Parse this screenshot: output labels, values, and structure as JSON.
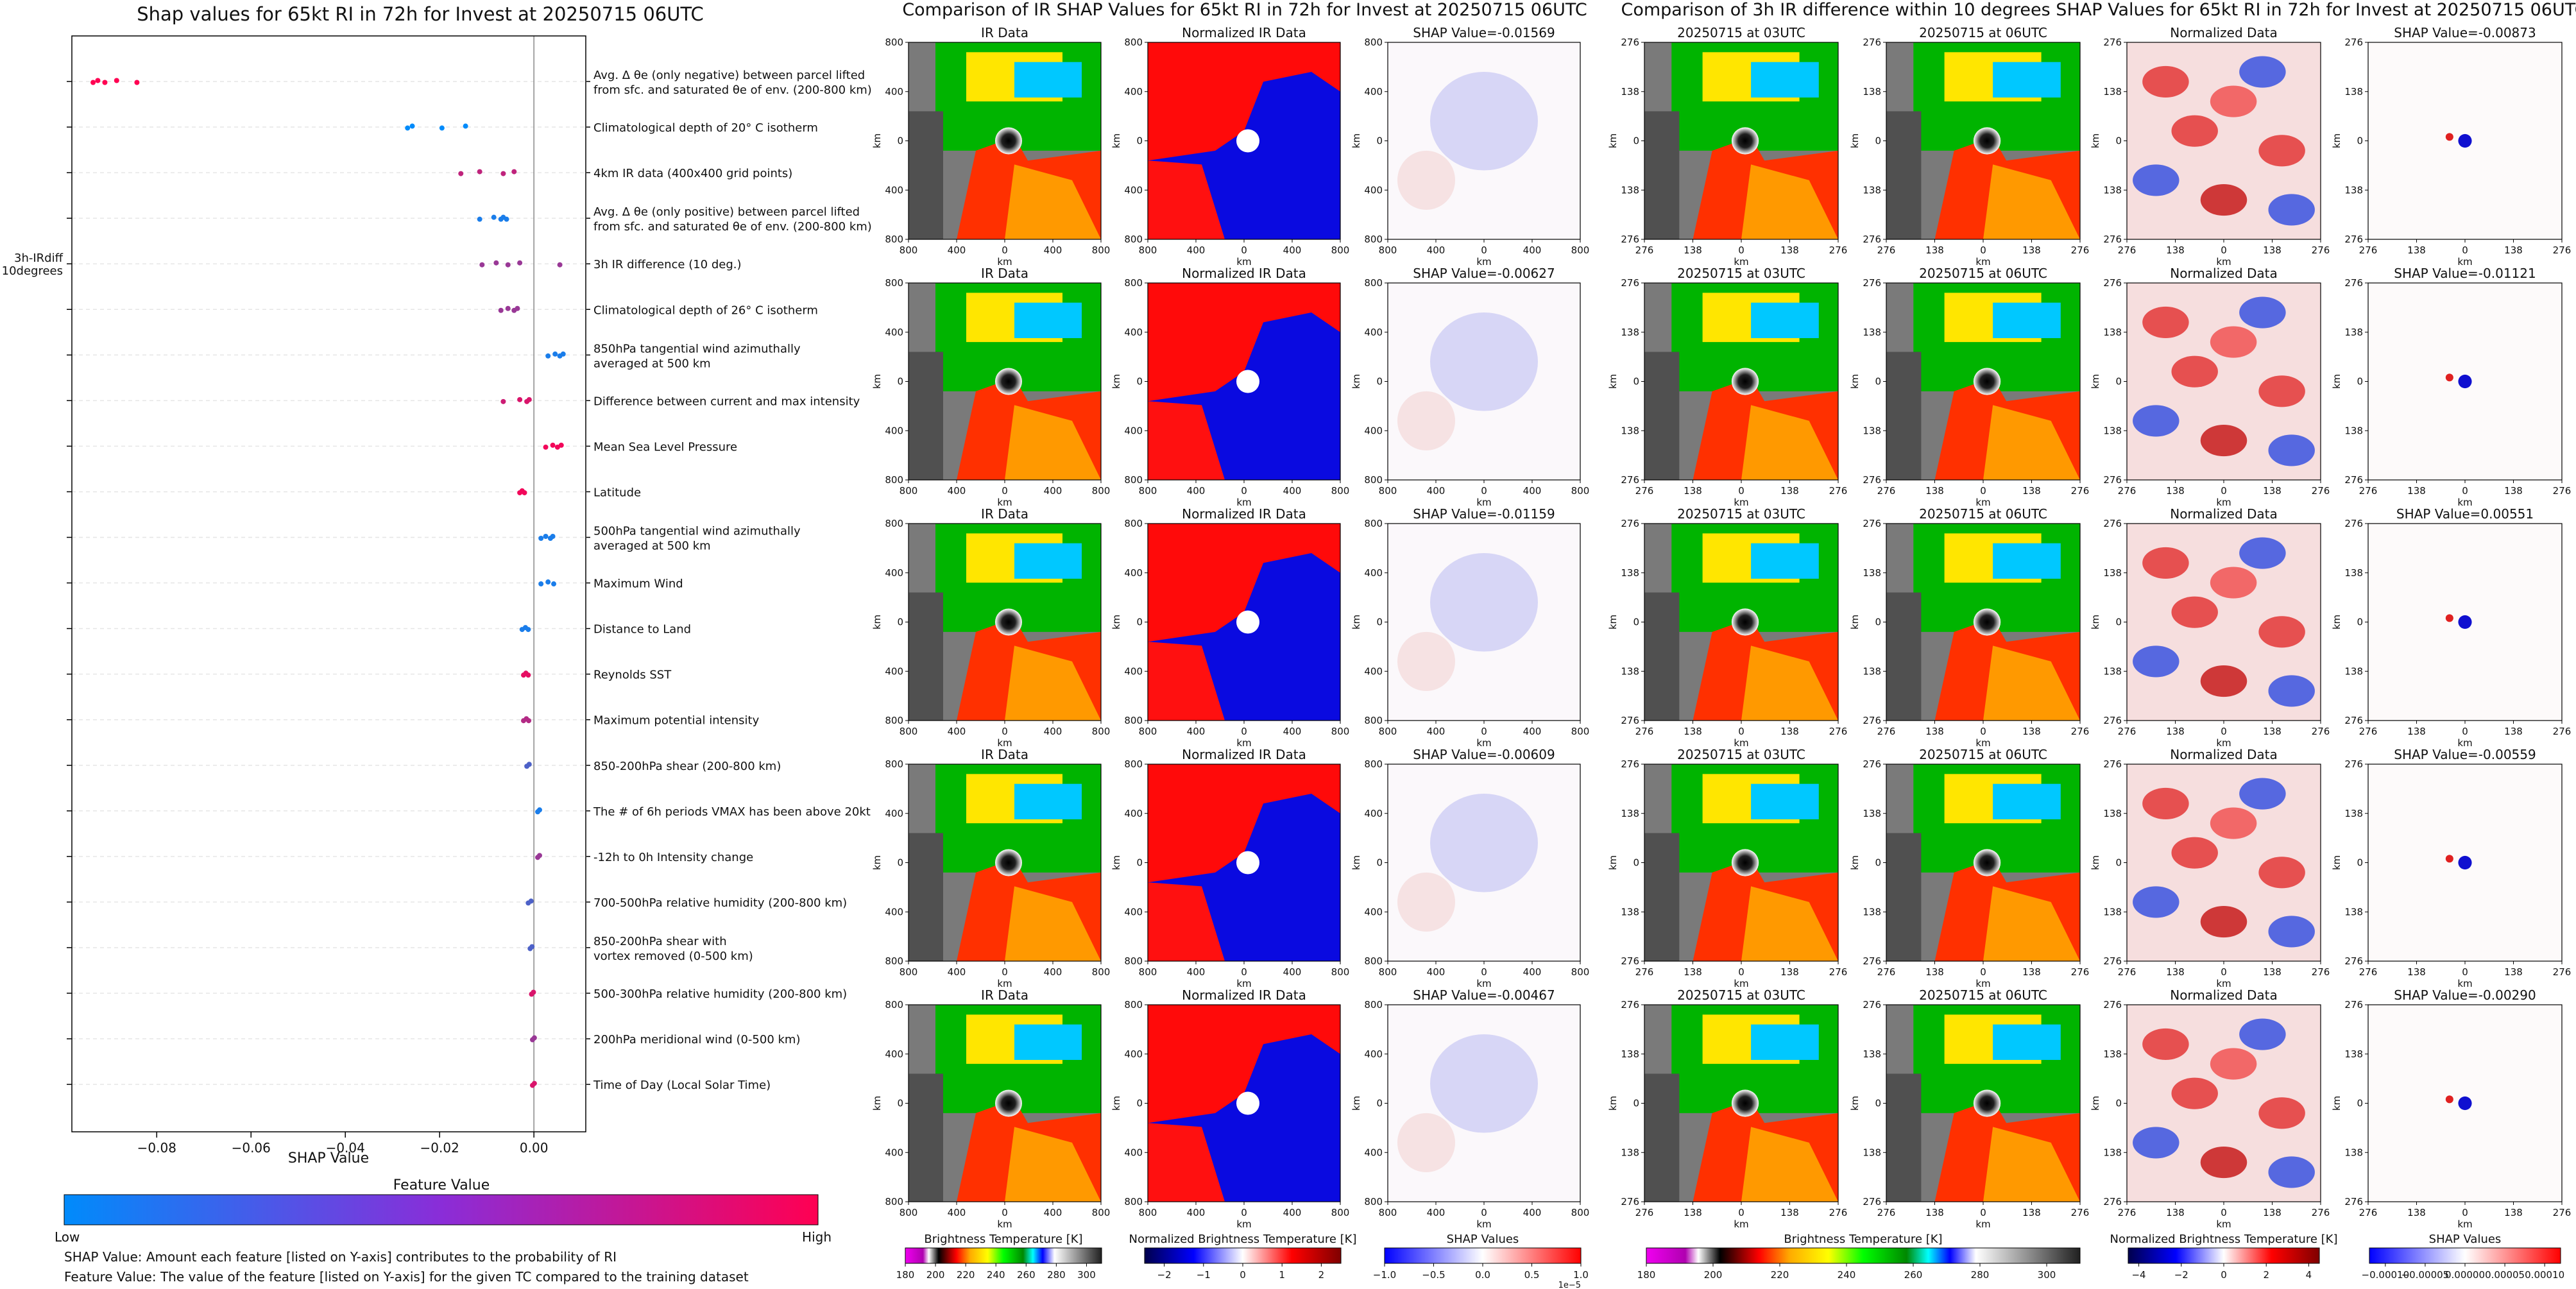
{
  "figure": {
    "left_title": "Shap values for 65kt RI in 72h for Invest at 20250715 06UTC",
    "mid_title": "Comparison of IR SHAP Values for 65kt RI in 72h for Invest at 20250715 06UTC",
    "right_title": "Comparison of 3h IR difference within 10 degrees SHAP Values for 65kt RI in 72h for Invest at 20250715 06UTC"
  },
  "chart_data": [
    {
      "type": "scatter",
      "title": "Shap values for 65kt RI in 72h for Invest at 20250715 06UTC",
      "xlabel": "SHAP Value",
      "ylabel": "",
      "xlim": [
        -0.098,
        0.011
      ],
      "xticks": [
        "−0.08",
        "−0.06",
        "−0.04",
        "−0.02",
        "0.00"
      ],
      "xtick_values": [
        -0.08,
        -0.06,
        -0.04,
        -0.02,
        0.0
      ],
      "grid": true,
      "features": [
        {
          "name": "ENSS",
          "desc": "Avg. Δ θe (only negative) between parcel lifted from sfc. and saturated θe of env. (200-800 km)",
          "desc_lines": [
            "Avg. Δ θe (only negative) between parcel lifted",
            "from sfc. and saturated θe of env. (200-800 km)"
          ],
          "points": [
            [
              -0.0935,
              1
            ],
            [
              -0.0925,
              1
            ],
            [
              -0.091,
              1
            ],
            [
              -0.0885,
              1
            ],
            [
              -0.0842,
              1
            ]
          ]
        },
        {
          "name": "CD20",
          "desc": "Climatological depth of 20° C isotherm",
          "desc_lines": [
            "Climatological depth of 20° C isotherm"
          ],
          "points": [
            [
              -0.0268,
              0
            ],
            [
              -0.0258,
              0
            ],
            [
              -0.0195,
              0
            ],
            [
              -0.0145,
              0
            ]
          ]
        },
        {
          "name": "IR",
          "desc": "4km IR data (400x400 grid points)",
          "desc_lines": [
            "4km IR data (400x400 grid points)"
          ],
          "points": [
            [
              -0.0155,
              0.75
            ],
            [
              -0.0115,
              0.75
            ],
            [
              -0.0065,
              0.75
            ],
            [
              -0.0042,
              0.75
            ]
          ]
        },
        {
          "name": "EPSS",
          "desc": "Avg. Δ θe (only positive) between parcel lifted from sfc. and saturated θe of env. (200-800 km)",
          "desc_lines": [
            "Avg. Δ θe (only positive) between parcel lifted",
            "from sfc. and saturated θe of env. (200-800 km)"
          ],
          "points": [
            [
              -0.0115,
              0.1
            ],
            [
              -0.0085,
              0.1
            ],
            [
              -0.007,
              0.1
            ],
            [
              -0.0065,
              0.1
            ],
            [
              -0.0058,
              0.1
            ]
          ]
        },
        {
          "name": "3h-IRdiff\n10degrees",
          "desc": "3h IR difference (10 deg.)",
          "desc_lines": [
            "3h IR difference (10 deg.)"
          ],
          "points": [
            [
              -0.011,
              0.6
            ],
            [
              -0.008,
              0.6
            ],
            [
              -0.0055,
              0.6
            ],
            [
              -0.003,
              0.6
            ],
            [
              0.0055,
              0.6
            ]
          ]
        },
        {
          "name": "CD26",
          "desc": "Climatological depth of 26° C isotherm",
          "desc_lines": [
            "Climatological depth of 26° C isotherm"
          ],
          "points": [
            [
              -0.007,
              0.6
            ],
            [
              -0.0055,
              0.6
            ],
            [
              -0.0042,
              0.6
            ],
            [
              -0.0035,
              0.6
            ]
          ]
        },
        {
          "name": "V850",
          "desc": "850hPa tangential wind azimuthally averaged at 500 km",
          "desc_lines": [
            "850hPa tangential wind azimuthally",
            "averaged at 500 km"
          ],
          "points": [
            [
              0.003,
              0.1
            ],
            [
              0.0045,
              0.1
            ],
            [
              0.0055,
              0.1
            ],
            [
              0.0062,
              0.1
            ]
          ]
        },
        {
          "name": "POT",
          "desc": "Difference between current and max intensity",
          "desc_lines": [
            "Difference between current and max intensity"
          ],
          "points": [
            [
              -0.0065,
              0.8
            ],
            [
              -0.003,
              0.85
            ],
            [
              -0.0015,
              0.85
            ],
            [
              -0.001,
              0.85
            ]
          ]
        },
        {
          "name": "MSLP",
          "desc": "Mean Sea Level Pressure",
          "desc_lines": [
            "Mean Sea Level Pressure"
          ],
          "points": [
            [
              0.0025,
              0.95
            ],
            [
              0.004,
              0.95
            ],
            [
              0.005,
              0.95
            ],
            [
              0.0058,
              0.95
            ]
          ]
        },
        {
          "name": "LAT",
          "desc": "Latitude",
          "desc_lines": [
            "Latitude"
          ],
          "points": [
            [
              -0.003,
              0.95
            ],
            [
              -0.0025,
              0.95
            ],
            [
              -0.002,
              0.95
            ]
          ]
        },
        {
          "name": "V500",
          "desc": "500hPa tangential wind azimuthally averaged at 500 km",
          "desc_lines": [
            "500hPa tangential wind azimuthally",
            "averaged at 500 km"
          ],
          "points": [
            [
              0.0015,
              0.1
            ],
            [
              0.0025,
              0.1
            ],
            [
              0.0035,
              0.1
            ],
            [
              0.004,
              0.1
            ]
          ]
        },
        {
          "name": "VMAX",
          "desc": "Maximum Wind",
          "desc_lines": [
            "Maximum Wind"
          ],
          "points": [
            [
              0.0015,
              0.1
            ],
            [
              0.003,
              0.1
            ],
            [
              0.0042,
              0.1
            ]
          ]
        },
        {
          "name": "DTL",
          "desc": "Distance to Land",
          "desc_lines": [
            "Distance to Land"
          ],
          "points": [
            [
              -0.0025,
              0.1
            ],
            [
              -0.0018,
              0.1
            ],
            [
              -0.0012,
              0.1
            ]
          ]
        },
        {
          "name": "RSST",
          "desc": "Reynolds SST",
          "desc_lines": [
            "Reynolds SST"
          ],
          "points": [
            [
              -0.0022,
              0.9
            ],
            [
              -0.0017,
              0.9
            ],
            [
              -0.0012,
              0.9
            ]
          ]
        },
        {
          "name": "MPI",
          "desc": "Maximum potential intensity",
          "desc_lines": [
            "Maximum potential intensity"
          ],
          "points": [
            [
              -0.0022,
              0.7
            ],
            [
              -0.0016,
              0.7
            ],
            [
              -0.0011,
              0.7
            ]
          ]
        },
        {
          "name": "SHRD",
          "desc": "850-200hPa shear (200-800 km)",
          "desc_lines": [
            "850-200hPa shear (200-800 km)"
          ],
          "points": [
            [
              -0.0015,
              0.3
            ],
            [
              -0.001,
              0.3
            ]
          ]
        },
        {
          "name": "HIST",
          "desc": "The # of 6h periods VMAX has been above 20kt",
          "desc_lines": [
            "The # of 6h periods VMAX has been above 20kt"
          ],
          "points": [
            [
              0.0008,
              0.1
            ],
            [
              0.0012,
              0.1
            ]
          ]
        },
        {
          "name": "DELV",
          "desc": "-12h to 0h Intensity change",
          "desc_lines": [
            "-12h to 0h Intensity change"
          ],
          "points": [
            [
              0.0008,
              0.6
            ],
            [
              0.0012,
              0.6
            ]
          ]
        },
        {
          "name": "RHMD",
          "desc": "700-500hPa relative humidity (200-800 km)",
          "desc_lines": [
            "700-500hPa relative humidity (200-800 km)"
          ],
          "points": [
            [
              -0.0012,
              0.3
            ],
            [
              -0.0006,
              0.3
            ]
          ]
        },
        {
          "name": "SHDC",
          "desc": "850-200hPa shear with vortex removed (0-500 km)",
          "desc_lines": [
            "850-200hPa shear with",
            "vortex removed (0-500 km)"
          ],
          "points": [
            [
              -0.0008,
              0.3
            ],
            [
              -0.0004,
              0.3
            ]
          ]
        },
        {
          "name": "RHHI",
          "desc": "500-300hPa relative humidity (200-800 km)",
          "desc_lines": [
            "500-300hPa relative humidity (200-800 km)"
          ],
          "points": [
            [
              -0.0005,
              0.85
            ],
            [
              -0.0001,
              0.85
            ]
          ]
        },
        {
          "name": "V20C",
          "desc": "200hPa meridional wind (0-500 km)",
          "desc_lines": [
            "200hPa meridional wind (0-500 km)"
          ],
          "points": [
            [
              -0.0003,
              0.6
            ],
            [
              0.0001,
              0.6
            ]
          ]
        },
        {
          "name": "TOD",
          "desc": "Time of Day (Local Solar Time)",
          "desc_lines": [
            "Time of Day (Local Solar Time)"
          ],
          "points": [
            [
              -0.0003,
              0.85
            ],
            [
              0.0001,
              0.85
            ]
          ]
        }
      ],
      "colorbar": {
        "label": "Feature Value",
        "low_label": "Low",
        "high_label": "High",
        "colors": [
          "#008bfb",
          "#ff0052"
        ]
      },
      "notes": [
        "SHAP Value: Amount each feature [listed on Y-axis] contributes to the probability of RI",
        "Feature Value: The value of the feature [listed on Y-axis] for the given TC compared to the training dataset"
      ]
    },
    {
      "type": "heatmap",
      "title": "Comparison of IR SHAP Values for 65kt RI in 72h for Invest at 20250715 06UTC",
      "columns": [
        {
          "title": "IR Data",
          "kind": "ir"
        },
        {
          "title": "Normalized IR Data",
          "kind": "norm"
        },
        {
          "title": "SHAP Value",
          "kind": "shap"
        }
      ],
      "shap_values": [
        "-0.01569",
        "-0.00627",
        "-0.01159",
        "-0.00609",
        "-0.00467"
      ],
      "axis": {
        "label": "km",
        "ticks": [
          "800",
          "400",
          "0",
          "400",
          "800"
        ],
        "xticks": [
          "800",
          "400",
          "0",
          "400",
          "800"
        ]
      },
      "colorbars": [
        {
          "label": "Brightness Temperature [K]",
          "ticks": [
            "180",
            "200",
            "220",
            "240",
            "260",
            "280",
            "300"
          ],
          "range": [
            180,
            310
          ],
          "scale": "ir"
        },
        {
          "label": "Normalized Brightness Temperature [K]",
          "ticks": [
            "−2",
            "−1",
            "0",
            "1",
            "2"
          ],
          "range": [
            -2.5,
            2.5
          ],
          "scale": "seismic"
        },
        {
          "label": "SHAP Values",
          "ticks": [
            "−1.0",
            "−0.5",
            "0.0",
            "0.5",
            "1.0"
          ],
          "range": [
            -1.0,
            1.0
          ],
          "scale": "bwr",
          "offset": "1e−5"
        }
      ]
    },
    {
      "type": "heatmap",
      "title": "Comparison of 3h IR difference within 10 degrees SHAP Values for 65kt RI in 72h for Invest at 20250715 06UTC",
      "columns": [
        {
          "title": "20250715 at 03UTC",
          "kind": "ir"
        },
        {
          "title": "20250715 at 06UTC",
          "kind": "ir"
        },
        {
          "title": "Normalized Data",
          "kind": "normdiff"
        },
        {
          "title": "SHAP Value",
          "kind": "shap2"
        }
      ],
      "shap_values": [
        "-0.00873",
        "-0.01121",
        "0.00551",
        "-0.00559",
        "-0.00290"
      ],
      "axis": {
        "label": "km",
        "ticks": [
          "276",
          "138",
          "0",
          "138",
          "276"
        ],
        "xticks": [
          "276",
          "138",
          "0",
          "138",
          "276"
        ]
      },
      "colorbars": [
        {
          "label": "Brightness Temperature [K]",
          "ticks": [
            "180",
            "200",
            "220",
            "240",
            "260",
            "280",
            "300"
          ],
          "range": [
            180,
            310
          ],
          "scale": "ir"
        },
        {
          "label": "Normalized Brightness Temperature [K]",
          "ticks": [
            "−4",
            "−2",
            "0",
            "2",
            "4"
          ],
          "range": [
            -4.5,
            4.5
          ],
          "scale": "seismic"
        },
        {
          "label": "SHAP Values",
          "ticks": [
            "−0.00010",
            "−0.00005",
            "0.00000",
            "0.00005",
            "0.00010"
          ],
          "range": [
            -0.00012,
            0.00012
          ],
          "scale": "bwr"
        }
      ]
    }
  ]
}
